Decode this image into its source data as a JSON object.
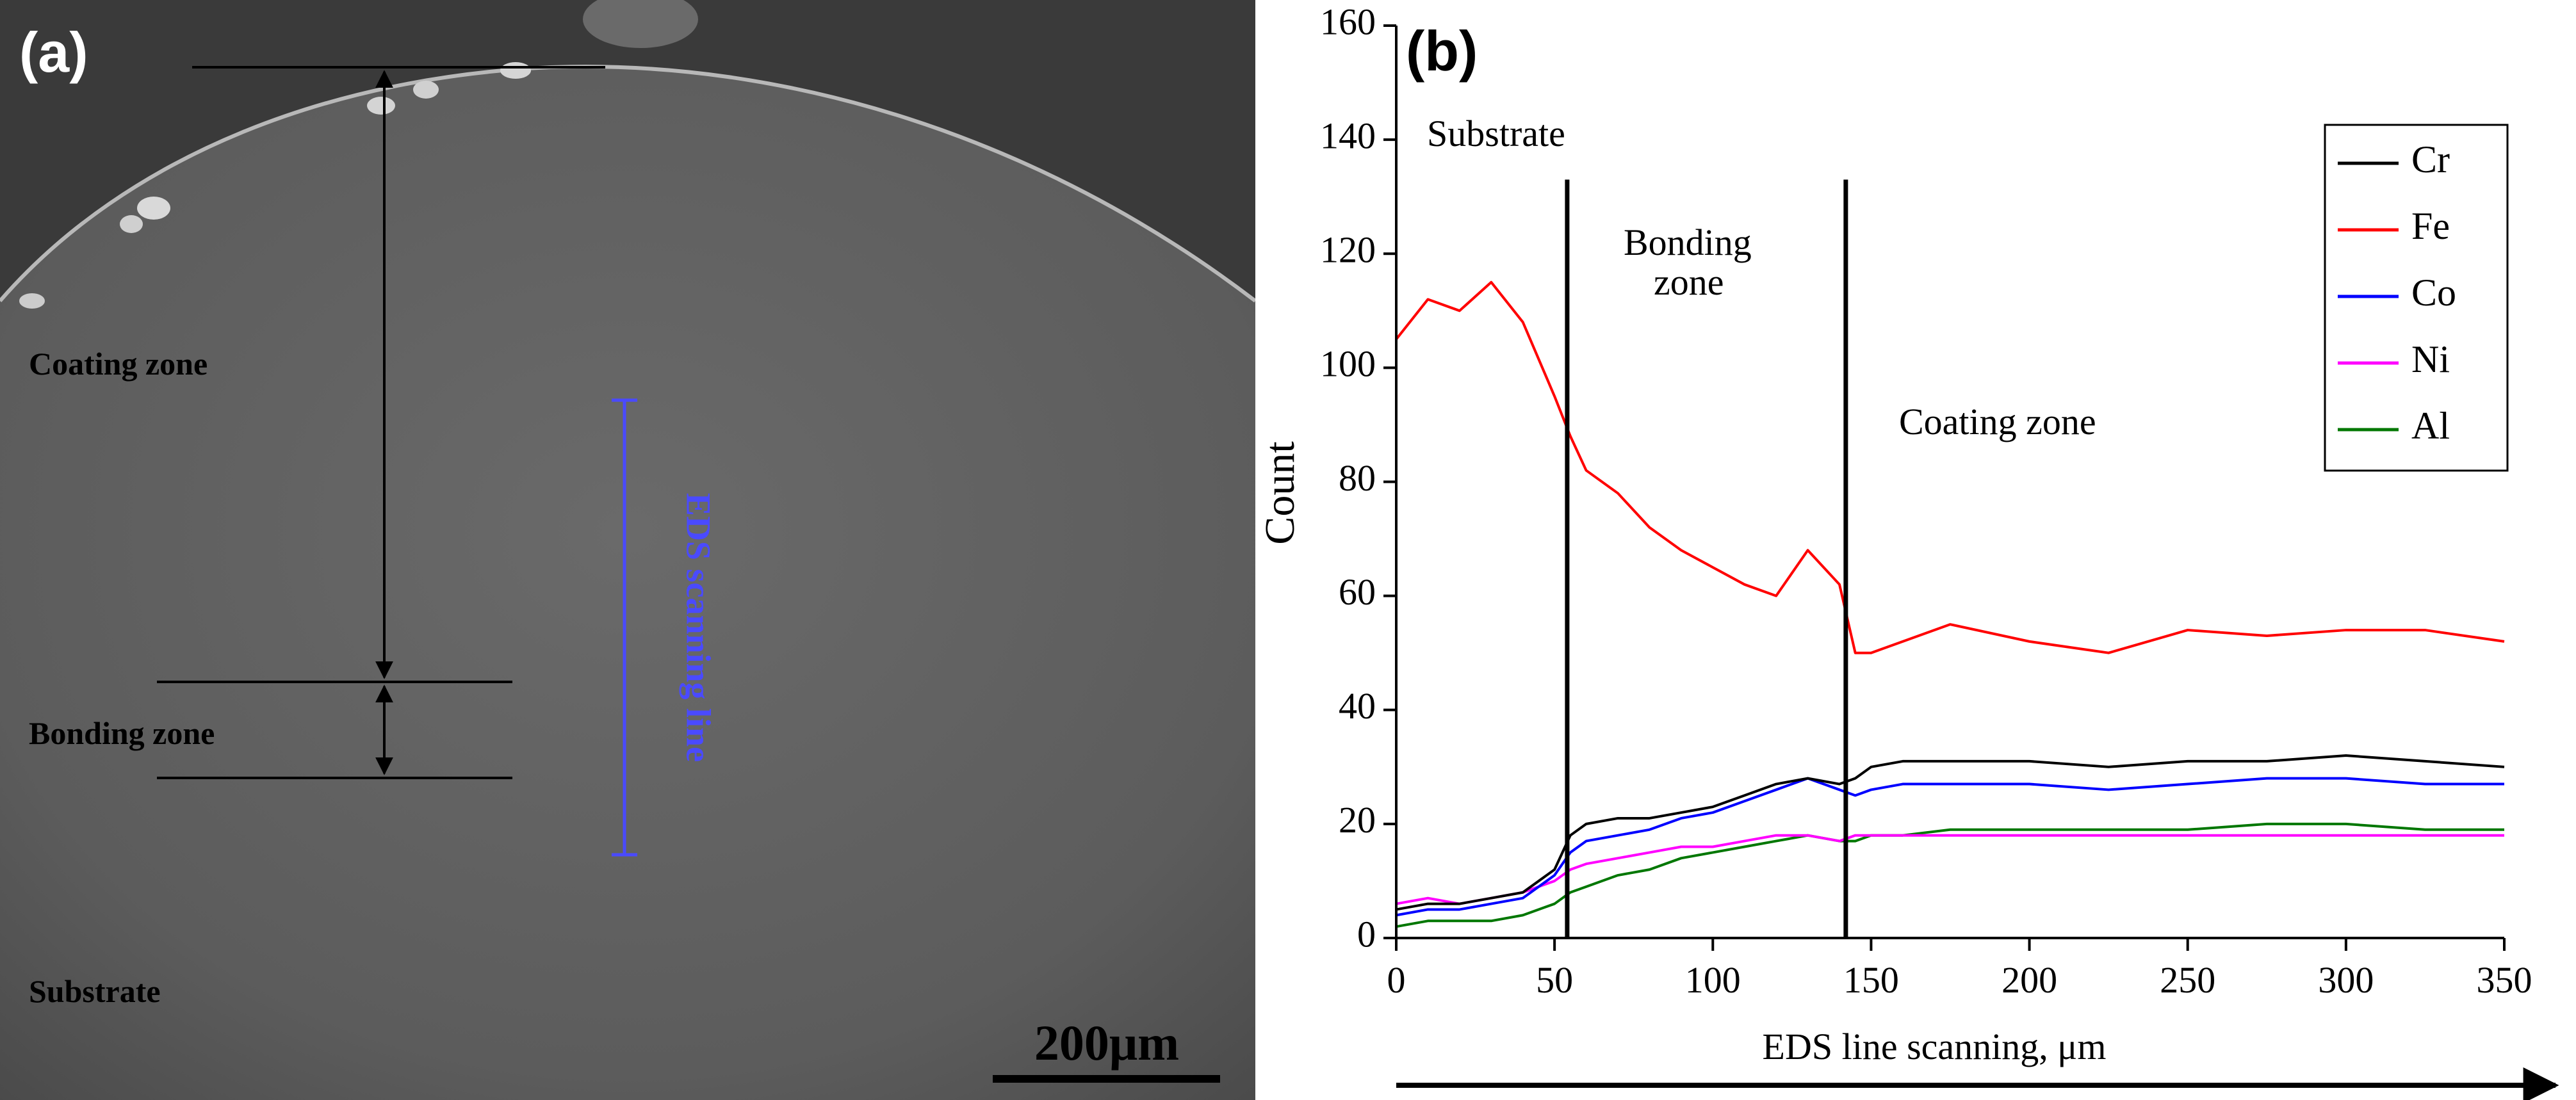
{
  "panel_a": {
    "label": "(a)",
    "zones": {
      "coating": "Coating zone",
      "bonding": "Bonding zone",
      "substrate": "Substrate"
    },
    "eds_line_label": "EDS scanning line",
    "scale_bar": "200μm",
    "colors": {
      "background": "#555555",
      "eds_line": "#4a4aff",
      "annotation": "#000000"
    }
  },
  "panel_b": {
    "label": "(b)",
    "zone_labels": {
      "substrate": "Substrate",
      "bonding_line1": "Bonding",
      "bonding_line2": "zone",
      "coating": "Coating zone"
    },
    "arrow_label": "EDS line scanning, μm"
  },
  "chart_data": {
    "type": "line",
    "title": "",
    "xlabel": "EDS line scanning, μm",
    "ylabel": "Count",
    "xlim": [
      0,
      350
    ],
    "ylim": [
      0,
      160
    ],
    "xticks": [
      0,
      50,
      100,
      150,
      200,
      250,
      300,
      350
    ],
    "yticks": [
      0,
      20,
      40,
      60,
      80,
      100,
      120,
      140,
      160
    ],
    "boundaries": [
      54,
      142
    ],
    "legend_position": "top-right",
    "x": [
      0,
      10,
      20,
      30,
      40,
      50,
      55,
      60,
      70,
      80,
      90,
      100,
      110,
      120,
      130,
      140,
      145,
      150,
      160,
      175,
      200,
      225,
      250,
      275,
      300,
      325,
      350
    ],
    "series": [
      {
        "name": "Cr",
        "color": "#000000",
        "values": [
          5,
          6,
          6,
          7,
          8,
          12,
          18,
          20,
          21,
          21,
          22,
          23,
          25,
          27,
          28,
          27,
          28,
          30,
          31,
          31,
          31,
          30,
          31,
          31,
          32,
          31,
          30
        ]
      },
      {
        "name": "Fe",
        "color": "#ff0000",
        "values": [
          105,
          112,
          110,
          115,
          108,
          95,
          88,
          82,
          78,
          72,
          68,
          65,
          62,
          60,
          68,
          62,
          50,
          50,
          52,
          55,
          52,
          50,
          54,
          53,
          54,
          54,
          52
        ]
      },
      {
        "name": "Co",
        "color": "#0000ff",
        "values": [
          4,
          5,
          5,
          6,
          7,
          11,
          15,
          17,
          18,
          19,
          21,
          22,
          24,
          26,
          28,
          26,
          25,
          26,
          27,
          27,
          27,
          26,
          27,
          28,
          28,
          27,
          27
        ]
      },
      {
        "name": "Ni",
        "color": "#ff00ff",
        "values": [
          6,
          7,
          6,
          7,
          8,
          10,
          12,
          13,
          14,
          15,
          16,
          16,
          17,
          18,
          18,
          17,
          18,
          18,
          18,
          18,
          18,
          18,
          18,
          18,
          18,
          18,
          18
        ]
      },
      {
        "name": "Al",
        "color": "#007700",
        "values": [
          2,
          3,
          3,
          3,
          4,
          6,
          8,
          9,
          11,
          12,
          14,
          15,
          16,
          17,
          18,
          17,
          17,
          18,
          18,
          19,
          19,
          19,
          19,
          20,
          20,
          19,
          19
        ]
      }
    ]
  }
}
